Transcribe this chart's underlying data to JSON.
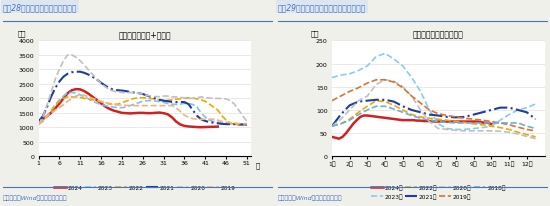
{
  "chart1": {
    "title_box": "图表28：近半月钢材库存环比续降",
    "inner_title": "钢材库存（厂库+社库）",
    "ylabel": "万吨",
    "xlabel": "周",
    "ylim": [
      0,
      4000
    ],
    "yticks": [
      0,
      500,
      1000,
      1500,
      2000,
      2500,
      3000,
      3500,
      4000
    ],
    "xticks": [
      1,
      6,
      11,
      16,
      21,
      26,
      31,
      36,
      41,
      46,
      51
    ],
    "source": "资料来源：Wind，国盛证券研究所",
    "series": {
      "2024": {
        "color": "#d02020",
        "style": "-",
        "linewidth": 1.8,
        "data_x": [
          1,
          2,
          3,
          4,
          5,
          6,
          7,
          8,
          9,
          10,
          11,
          12,
          13,
          14,
          15,
          16,
          17,
          18,
          19,
          20,
          21,
          22,
          23,
          24,
          25,
          26,
          27,
          28,
          29,
          30,
          31,
          32,
          33,
          34,
          35,
          36,
          37,
          38,
          39,
          40,
          41,
          42,
          43,
          44
        ],
        "data_y": [
          1200,
          1280,
          1380,
          1500,
          1650,
          1820,
          2000,
          2180,
          2280,
          2320,
          2310,
          2250,
          2160,
          2050,
          1940,
          1830,
          1720,
          1640,
          1580,
          1540,
          1500,
          1490,
          1480,
          1490,
          1500,
          1500,
          1490,
          1490,
          1500,
          1510,
          1490,
          1450,
          1350,
          1200,
          1100,
          1050,
          1030,
          1020,
          1010,
          1005,
          1010,
          1015,
          1020,
          1025
        ]
      },
      "2023": {
        "color": "#7fbfff",
        "style": "--",
        "linewidth": 1.2,
        "data_x": [
          1,
          2,
          3,
          4,
          5,
          6,
          7,
          8,
          9,
          10,
          11,
          12,
          13,
          14,
          15,
          16,
          17,
          18,
          19,
          20,
          21,
          22,
          23,
          24,
          25,
          26,
          27,
          28,
          29,
          30,
          31,
          32,
          33,
          34,
          35,
          36,
          37,
          38,
          39,
          40,
          41,
          42,
          43,
          44,
          45,
          46,
          47,
          48,
          49,
          50,
          51
        ],
        "data_y": [
          1150,
          1250,
          1400,
          1580,
          1780,
          1950,
          2080,
          2200,
          2200,
          2180,
          2120,
          2050,
          1980,
          1900,
          1840,
          1780,
          1750,
          1720,
          1700,
          1680,
          1680,
          1700,
          1750,
          1800,
          1850,
          1900,
          1920,
          1920,
          1910,
          1890,
          1860,
          1820,
          1800,
          1790,
          1800,
          1830,
          1820,
          1790,
          1700,
          1500,
          1350,
          1250,
          1200,
          1180,
          1150,
          1140,
          1130,
          1120,
          1120,
          1120,
          1130
        ]
      },
      "2022": {
        "color": "#f0a800",
        "style": "--",
        "linewidth": 1.2,
        "data_x": [
          1,
          2,
          3,
          4,
          5,
          6,
          7,
          8,
          9,
          10,
          11,
          12,
          13,
          14,
          15,
          16,
          17,
          18,
          19,
          20,
          21,
          22,
          23,
          24,
          25,
          26,
          27,
          28,
          29,
          30,
          31,
          32,
          33,
          34,
          35,
          36,
          37,
          38,
          39,
          40,
          41,
          42,
          43,
          44,
          45,
          46,
          47,
          48,
          49,
          50,
          51
        ],
        "data_y": [
          1100,
          1200,
          1380,
          1550,
          1750,
          1900,
          2000,
          2050,
          2050,
          2050,
          2030,
          2000,
          1980,
          1950,
          1920,
          1880,
          1850,
          1820,
          1800,
          1800,
          1850,
          1900,
          1960,
          2000,
          2020,
          2020,
          2010,
          1990,
          1970,
          1950,
          1930,
          1930,
          1950,
          1970,
          1980,
          2000,
          2020,
          2010,
          1980,
          1950,
          1900,
          1800,
          1700,
          1600,
          1400,
          1250,
          1150,
          1100,
          1080,
          1080,
          1090
        ]
      },
      "2021": {
        "color": "#1f3d99",
        "style": "-.",
        "linewidth": 1.5,
        "data_x": [
          1,
          2,
          3,
          4,
          5,
          6,
          7,
          8,
          9,
          10,
          11,
          12,
          13,
          14,
          15,
          16,
          17,
          18,
          19,
          20,
          21,
          22,
          23,
          24,
          25,
          26,
          27,
          28,
          29,
          30,
          31,
          32,
          33,
          34,
          35,
          36,
          37,
          38,
          39,
          40,
          41,
          42,
          43,
          44,
          45,
          46,
          47,
          48,
          49,
          50,
          51
        ],
        "data_y": [
          1200,
          1380,
          1680,
          2050,
          2350,
          2580,
          2750,
          2850,
          2900,
          2920,
          2920,
          2880,
          2820,
          2740,
          2650,
          2540,
          2440,
          2350,
          2300,
          2280,
          2270,
          2250,
          2220,
          2200,
          2180,
          2150,
          2100,
          2050,
          2000,
          1950,
          1920,
          1900,
          1880,
          1870,
          1880,
          1870,
          1800,
          1600,
          1400,
          1280,
          1220,
          1180,
          1160,
          1140,
          1120,
          1110,
          1110,
          1110,
          1100,
          1100,
          1100
        ]
      },
      "2020": {
        "color": "#c0c0c0",
        "style": "--",
        "linewidth": 1.2,
        "data_x": [
          1,
          2,
          3,
          4,
          5,
          6,
          7,
          8,
          9,
          10,
          11,
          12,
          13,
          14,
          15,
          16,
          17,
          18,
          19,
          20,
          21,
          22,
          23,
          24,
          25,
          26,
          27,
          28,
          29,
          30,
          31,
          32,
          33,
          34,
          35,
          36,
          37,
          38,
          39,
          40,
          41,
          42,
          43,
          44,
          45,
          46,
          47,
          48,
          49,
          50,
          51
        ],
        "data_y": [
          1100,
          1350,
          1750,
          2200,
          2650,
          3000,
          3300,
          3500,
          3500,
          3420,
          3300,
          3150,
          2980,
          2820,
          2660,
          2520,
          2400,
          2300,
          2250,
          2220,
          2200,
          2200,
          2200,
          2200,
          2180,
          2150,
          2100,
          2080,
          2060,
          2060,
          2080,
          2080,
          2050,
          2050,
          2030,
          2020,
          2000,
          2000,
          2020,
          2050,
          2030,
          2010,
          2000,
          2000,
          1990,
          1980,
          1920,
          1800,
          1600,
          1400,
          1200
        ]
      },
      "2019": {
        "color": "#f5b07e",
        "style": "--",
        "linewidth": 1.2,
        "data_x": [
          1,
          2,
          3,
          4,
          5,
          6,
          7,
          8,
          9,
          10,
          11,
          12,
          13,
          14,
          15,
          16,
          17,
          18,
          19,
          20,
          21,
          22,
          23,
          24,
          25,
          26,
          27,
          28,
          29,
          30,
          31,
          32,
          33,
          34,
          35,
          36,
          37,
          38,
          39,
          40,
          41,
          42,
          43,
          44,
          45,
          46,
          47,
          48,
          49,
          50,
          51
        ],
        "data_y": [
          1100,
          1200,
          1380,
          1480,
          1600,
          1680,
          1780,
          1900,
          2000,
          2080,
          2120,
          2100,
          2050,
          2000,
          1950,
          1900,
          1850,
          1800,
          1780,
          1770,
          1770,
          1760,
          1750,
          1750,
          1750,
          1750,
          1750,
          1750,
          1750,
          1750,
          1750,
          1750,
          1750,
          1680,
          1550,
          1420,
          1350,
          1300,
          1280,
          1280,
          1280,
          1280,
          1280,
          1250,
          1200,
          1180,
          1160,
          1150,
          1130,
          1120,
          1120
        ]
      }
    },
    "legend_order": [
      "2024",
      "2023",
      "2022",
      "2021",
      "2020",
      "2019"
    ]
  },
  "chart2": {
    "title_box": "图表29：近半月电解铝库存环比连续回落",
    "inner_title": "中国库存：电解铝：合计",
    "ylabel": "万吨",
    "xlabel": "",
    "ylim": [
      0,
      250
    ],
    "yticks": [
      0,
      50,
      100,
      150,
      200,
      250
    ],
    "xticks": [
      1,
      2,
      3,
      4,
      5,
      6,
      7,
      8,
      9,
      10,
      11,
      12
    ],
    "xlabels": [
      "1月",
      "2月",
      "3月",
      "4月",
      "5月",
      "6月",
      "7月",
      "8月",
      "9月",
      "10月",
      "11月",
      "12月"
    ],
    "source": "资料来源：Wind，国盛证券研究所",
    "series": {
      "2024年": {
        "color": "#d02020",
        "style": "-",
        "linewidth": 1.8,
        "data_x": [
          1.0,
          1.2,
          1.4,
          1.6,
          1.8,
          2.0,
          2.2,
          2.4,
          2.6,
          2.8,
          3.0,
          3.2,
          3.4,
          3.6,
          3.8,
          4.0,
          4.2,
          4.4,
          4.6,
          4.8,
          5.0,
          5.2,
          5.4,
          5.6,
          5.8,
          6.0,
          6.2,
          6.4,
          6.6,
          6.8,
          7.0,
          7.2,
          7.4,
          7.6,
          7.8,
          8.0,
          8.2,
          8.4,
          8.6,
          8.8,
          9.0,
          9.2,
          9.5,
          9.8,
          10.0
        ],
        "data_y": [
          42,
          40,
          38,
          42,
          50,
          60,
          70,
          78,
          85,
          88,
          88,
          87,
          86,
          85,
          84,
          83,
          82,
          81,
          80,
          79,
          78,
          78,
          78,
          78,
          77,
          77,
          76,
          76,
          76,
          75,
          75,
          75,
          75,
          75,
          75,
          75,
          75,
          75,
          75,
          75,
          75,
          75,
          73,
          72,
          70
        ]
      },
      "2023年": {
        "color": "#87ceeb",
        "style": "--",
        "linewidth": 1.2,
        "data_x": [
          1.0,
          1.5,
          2.0,
          2.5,
          3.0,
          3.5,
          4.0,
          4.5,
          5.0,
          5.5,
          6.0,
          6.5,
          7.0,
          7.5,
          8.0,
          8.5,
          9.0,
          9.5,
          10.0,
          10.5,
          11.0,
          11.5,
          12.0,
          12.5
        ],
        "data_y": [
          170,
          175,
          178,
          185,
          195,
          215,
          222,
          210,
          195,
          170,
          140,
          100,
          70,
          60,
          58,
          58,
          60,
          62,
          65,
          78,
          90,
          100,
          105,
          113
        ]
      },
      "2022年": {
        "color": "#f0a800",
        "style": "--",
        "linewidth": 1.2,
        "data_x": [
          1.0,
          1.5,
          2.0,
          2.5,
          3.0,
          3.5,
          4.0,
          4.5,
          5.0,
          5.5,
          6.0,
          6.5,
          7.0,
          7.5,
          8.0,
          8.5,
          9.0,
          9.5,
          10.0,
          10.5,
          11.0,
          11.5,
          12.0,
          12.5
        ],
        "data_y": [
          65,
          70,
          80,
          95,
          108,
          120,
          118,
          110,
          100,
          90,
          85,
          82,
          80,
          78,
          75,
          73,
          70,
          68,
          65,
          62,
          58,
          52,
          47,
          42
        ]
      },
      "2021年": {
        "color": "#1f3d99",
        "style": "-.",
        "linewidth": 1.5,
        "data_x": [
          1.0,
          1.5,
          2.0,
          2.5,
          3.0,
          3.5,
          4.0,
          4.5,
          5.0,
          5.5,
          6.0,
          6.5,
          7.0,
          7.5,
          8.0,
          8.5,
          9.0,
          9.5,
          10.0,
          10.5,
          11.0,
          11.5,
          12.0,
          12.5
        ],
        "data_y": [
          65,
          90,
          110,
          118,
          120,
          122,
          122,
          118,
          108,
          100,
          95,
          90,
          88,
          85,
          84,
          85,
          90,
          95,
          100,
          105,
          105,
          100,
          95,
          80
        ]
      },
      "2020年": {
        "color": "#c0c0c0",
        "style": "--",
        "linewidth": 1.2,
        "data_x": [
          1.0,
          1.5,
          2.0,
          2.5,
          3.0,
          3.5,
          4.0,
          4.5,
          5.0,
          5.5,
          6.0,
          6.5,
          7.0,
          7.5,
          8.0,
          8.5,
          9.0,
          9.5,
          10.0,
          10.5,
          11.0,
          11.5,
          12.0,
          12.5
        ],
        "data_y": [
          65,
          80,
          100,
          120,
          130,
          155,
          165,
          162,
          150,
          130,
          100,
          75,
          60,
          58,
          56,
          55,
          55,
          55,
          55,
          54,
          52,
          48,
          43,
          38
        ]
      },
      "2019年": {
        "color": "#e07030",
        "style": "--",
        "linewidth": 1.2,
        "data_x": [
          1.0,
          1.5,
          2.0,
          2.5,
          3.0,
          3.5,
          4.0,
          4.5,
          5.0,
          5.5,
          6.0,
          6.5,
          7.0,
          7.5,
          8.0,
          8.5,
          9.0,
          9.5,
          10.0,
          10.5,
          11.0,
          11.5,
          12.0,
          12.5
        ],
        "data_y": [
          120,
          130,
          140,
          148,
          158,
          165,
          165,
          160,
          148,
          130,
          115,
          100,
          92,
          88,
          85,
          82,
          80,
          78,
          75,
          72,
          68,
          63,
          58,
          55
        ]
      },
      "2018年": {
        "color": "#6baed6",
        "style": "--",
        "linewidth": 1.2,
        "data_x": [
          1.0,
          1.5,
          2.0,
          2.5,
          3.0,
          3.5,
          4.0,
          4.5,
          5.0,
          5.5,
          6.0,
          6.5,
          7.0,
          7.5,
          8.0,
          8.5,
          9.0,
          9.5,
          10.0,
          10.5,
          11.0,
          11.5,
          12.0,
          12.5
        ],
        "data_y": [
          65,
          70,
          78,
          90,
          100,
          108,
          108,
          102,
          95,
          88,
          82,
          78,
          75,
          73,
          72,
          72,
          72,
          72,
          72,
          72,
          72,
          72,
          65,
          60
        ]
      }
    },
    "legend_order": [
      "2024年",
      "2023年",
      "2022年",
      "2021年",
      "2020年",
      "2019年",
      "2018年"
    ]
  },
  "fig_bg": "#f0f0eb",
  "header_color": "#4472c4",
  "source_color": "#4472c4"
}
